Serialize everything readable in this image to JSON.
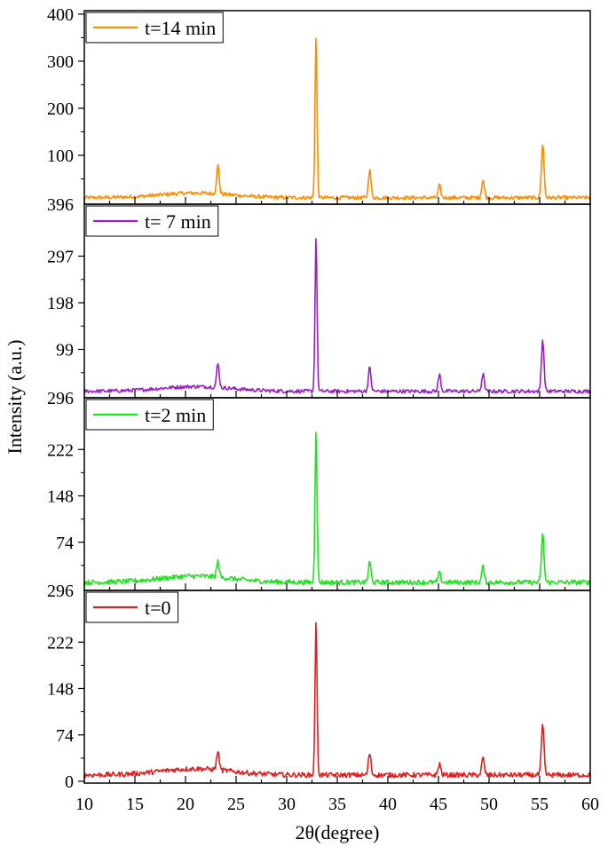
{
  "chart_data": {
    "type": "line",
    "layout": "stacked-panels",
    "xlabel": "2θ(degree)",
    "ylabel": "Intensity (a.u.)",
    "xlim": [
      10,
      60
    ],
    "x_ticks": [
      10,
      15,
      20,
      25,
      30,
      35,
      40,
      45,
      50,
      55,
      60
    ],
    "x_tick_labels": [
      "10",
      "15",
      "20",
      "25",
      "30",
      "35",
      "40",
      "45",
      "50",
      "55",
      "60"
    ],
    "grid": false,
    "legend_position": "top-left",
    "panels": [
      {
        "series_name": "t=14 min",
        "color": "#ff8c00",
        "ylim": [
          0,
          396
        ],
        "y_ticks": [
          100,
          200,
          300,
          400
        ],
        "y_tick_labels": [
          "100",
          "200",
          "300",
          "400"
        ],
        "bottom_tick_label": "396",
        "baseline": 10,
        "peaks": [
          {
            "x": 23.2,
            "y": 70
          },
          {
            "x": 32.9,
            "y": 355
          },
          {
            "x": 38.2,
            "y": 70
          },
          {
            "x": 45.1,
            "y": 36
          },
          {
            "x": 49.4,
            "y": 48
          },
          {
            "x": 55.3,
            "y": 125
          }
        ]
      },
      {
        "series_name": "t= 7 min",
        "color": "#9b1fc4",
        "ylim": [
          0,
          396
        ],
        "y_ticks": [
          99,
          198,
          297
        ],
        "y_tick_labels": [
          "99",
          "198",
          "297"
        ],
        "bottom_tick_label": "296",
        "baseline": 10,
        "peaks": [
          {
            "x": 23.2,
            "y": 60
          },
          {
            "x": 32.9,
            "y": 340
          },
          {
            "x": 38.2,
            "y": 60
          },
          {
            "x": 45.1,
            "y": 45
          },
          {
            "x": 49.4,
            "y": 47
          },
          {
            "x": 55.3,
            "y": 120
          }
        ]
      },
      {
        "series_name": "t=2 min",
        "color": "#22e022",
        "ylim": [
          0,
          296
        ],
        "y_ticks": [
          74,
          148,
          222
        ],
        "y_tick_labels": [
          "74",
          "148",
          "222"
        ],
        "bottom_tick_label": "296",
        "baseline": 10,
        "peaks": [
          {
            "x": 23.2,
            "y": 35
          },
          {
            "x": 32.9,
            "y": 256
          },
          {
            "x": 38.2,
            "y": 42
          },
          {
            "x": 45.1,
            "y": 25
          },
          {
            "x": 49.4,
            "y": 35
          },
          {
            "x": 55.3,
            "y": 87
          }
        ]
      },
      {
        "series_name": "t=0",
        "color": "#e02020",
        "ylim": [
          0,
          296
        ],
        "y_ticks": [
          0,
          74,
          148,
          222
        ],
        "y_tick_labels": [
          "0",
          "74",
          "148",
          "222"
        ],
        "bottom_tick_label": "",
        "baseline": 10,
        "peaks": [
          {
            "x": 23.2,
            "y": 40
          },
          {
            "x": 32.9,
            "y": 255
          },
          {
            "x": 38.2,
            "y": 45
          },
          {
            "x": 45.1,
            "y": 28
          },
          {
            "x": 49.4,
            "y": 37
          },
          {
            "x": 55.3,
            "y": 90
          }
        ]
      }
    ]
  }
}
